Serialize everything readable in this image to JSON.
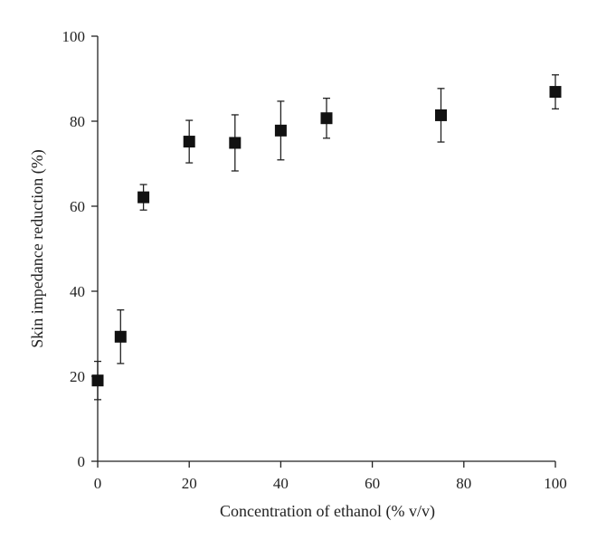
{
  "chart_data": {
    "type": "scatter",
    "title": "",
    "xlabel": "Concentration of ethanol (% v/v)",
    "ylabel": "Skin impedance reduction (%)",
    "xlim": [
      0,
      100
    ],
    "ylim": [
      0,
      100
    ],
    "x_ticks": [
      "0",
      "20",
      "40",
      "60",
      "80",
      "100"
    ],
    "y_ticks": [
      "0",
      "20",
      "40",
      "60",
      "80",
      "100"
    ],
    "grid": false,
    "legend": "none",
    "marker": "square",
    "color": "#111111",
    "points": [
      {
        "x": 0,
        "y": 19.0,
        "err": 4.5
      },
      {
        "x": 5,
        "y": 29.3,
        "err": 6.3
      },
      {
        "x": 10,
        "y": 62.1,
        "err": 3.0
      },
      {
        "x": 20,
        "y": 75.2,
        "err": 5.0
      },
      {
        "x": 30,
        "y": 74.9,
        "err": 6.6
      },
      {
        "x": 40,
        "y": 77.8,
        "err": 6.9
      },
      {
        "x": 50,
        "y": 80.7,
        "err": 4.7
      },
      {
        "x": 75,
        "y": 81.4,
        "err": 6.3
      },
      {
        "x": 100,
        "y": 86.9,
        "err": 4.0
      }
    ]
  }
}
